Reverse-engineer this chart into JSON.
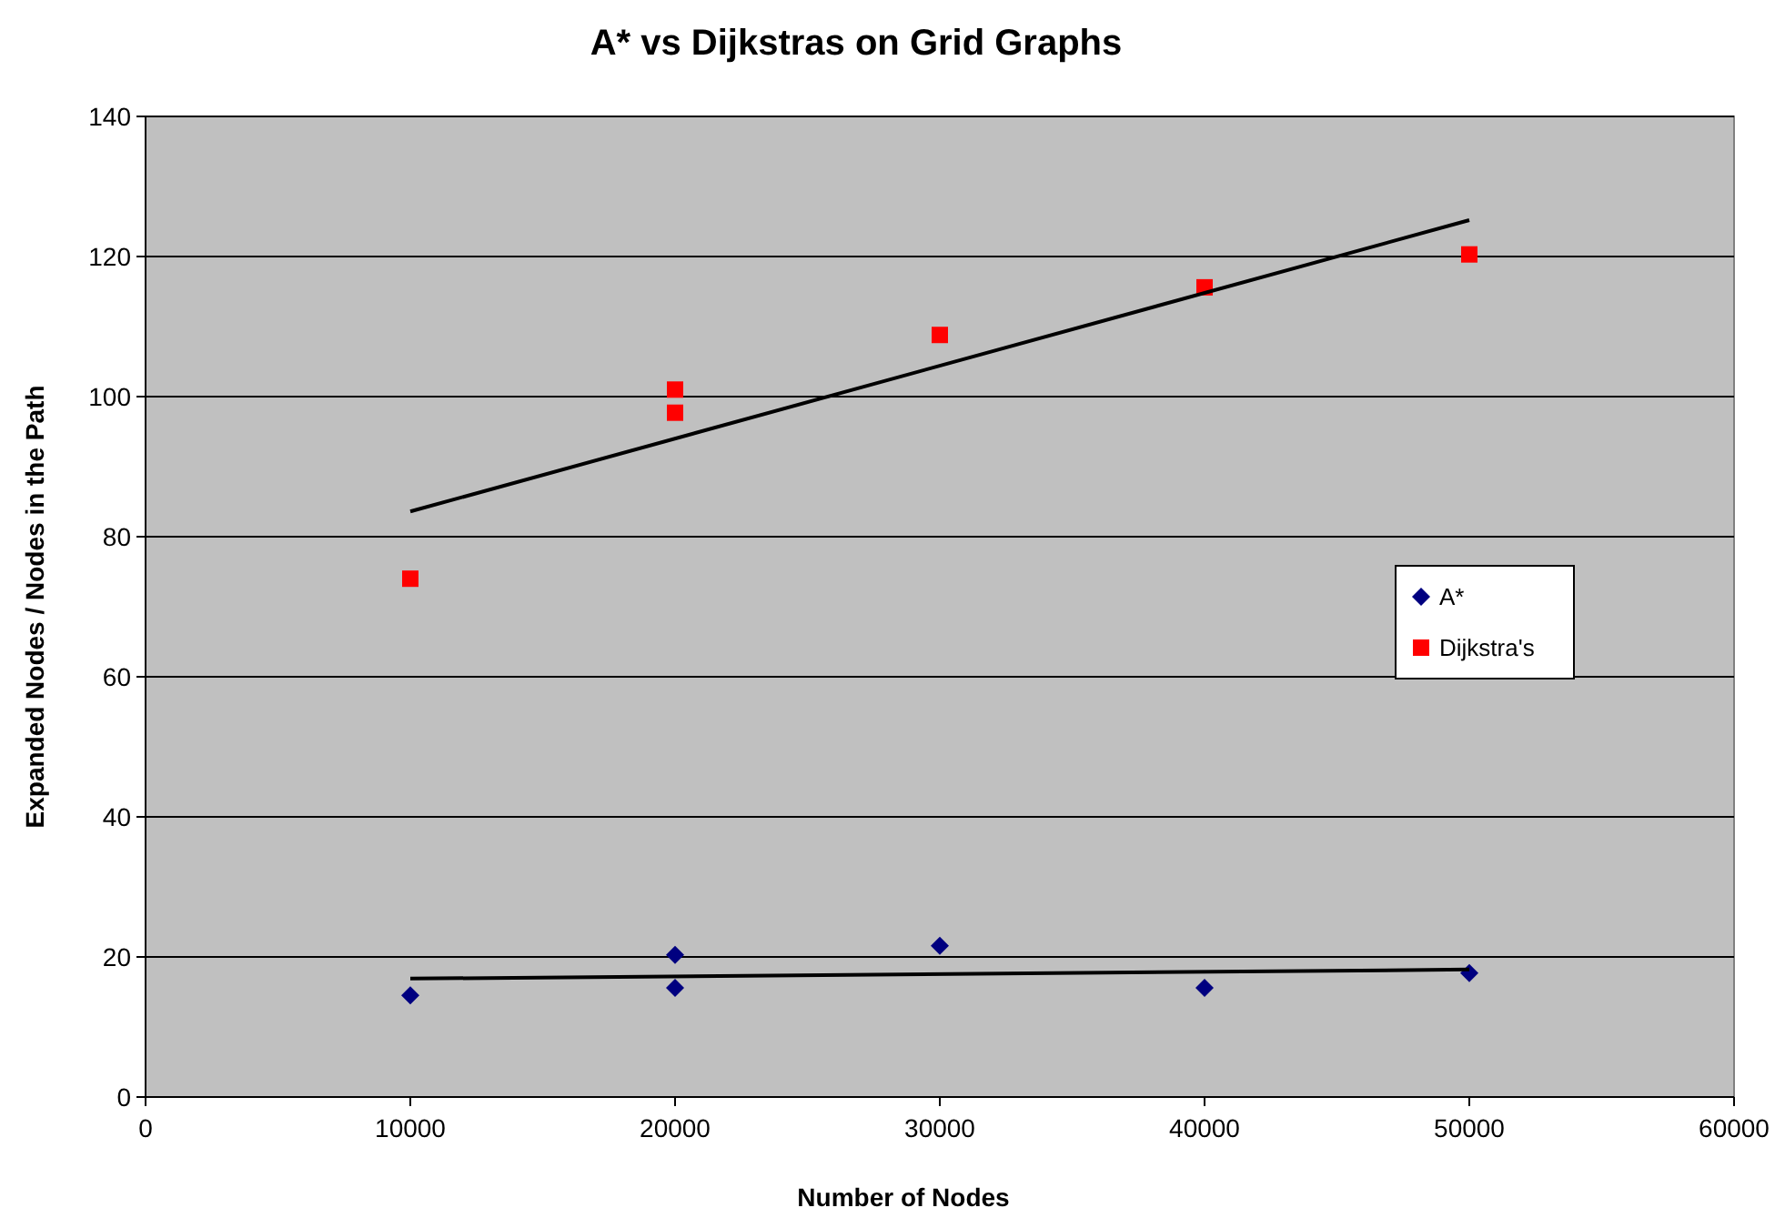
{
  "chart_data": {
    "type": "scatter",
    "title": "A* vs Dijkstras on Grid Graphs",
    "xlabel": "Number of Nodes",
    "ylabel": "Expanded Nodes / Nodes in the Path",
    "xlim": [
      0,
      60000
    ],
    "xticks": [
      0,
      10000,
      20000,
      30000,
      40000,
      50000,
      60000
    ],
    "ylim": [
      0,
      140
    ],
    "yticks": [
      0,
      20,
      40,
      60,
      80,
      100,
      120,
      140
    ],
    "grid": "y",
    "legend": "right",
    "series": [
      {
        "name": "A*",
        "color": "#000080",
        "marker": "diamond",
        "x": [
          10000,
          20000,
          20000,
          30000,
          40000,
          50000
        ],
        "values": [
          14.5,
          20.3,
          15.6,
          21.6,
          15.6,
          17.7
        ]
      },
      {
        "name": "Dijkstra's",
        "color": "#ff0000",
        "marker": "square",
        "x": [
          10000,
          20000,
          20000,
          30000,
          40000,
          50000
        ],
        "values": [
          74,
          101,
          97.7,
          108.8,
          115.6,
          120.3
        ]
      },
      {
        "type": "line",
        "color": "#000000",
        "marker": "none",
        "x": [
          10000,
          50000
        ],
        "values": [
          16.9,
          18.2
        ]
      },
      {
        "type": "line",
        "color": "#000000",
        "marker": "none",
        "x": [
          10000,
          50000
        ],
        "values": [
          83.6,
          125.2
        ]
      }
    ]
  }
}
